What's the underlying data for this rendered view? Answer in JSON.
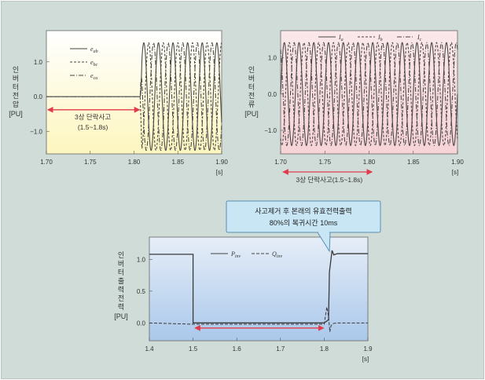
{
  "chart_data": [
    {
      "type": "line",
      "ylabel": "인버터전압",
      "yunit": "[PU]",
      "xunit": "[s]",
      "xlim": [
        1.7,
        1.9
      ],
      "ylim": [
        -1.65,
        1.9
      ],
      "xticks": [
        "1.70",
        "1.75",
        "1.80",
        "1.85",
        "1.90"
      ],
      "yticks": [
        "1.0",
        "0.0",
        "−1.0"
      ],
      "ytick_values": [
        1.0,
        0.0,
        -1.0
      ],
      "legend": [
        "eab",
        "ebc",
        "eca"
      ],
      "legend_subs": [
        [
          "e",
          "ab"
        ],
        [
          "e",
          "bc"
        ],
        [
          "e",
          "ca"
        ]
      ],
      "annotation": [
        "3상 단락사고",
        "(1.5~1.8s)"
      ],
      "fault_end": 1.807,
      "amplitude": 1.55,
      "frequency_hz": 60,
      "background": "#fdf6bf"
    },
    {
      "type": "line",
      "ylabel": "인버터전류",
      "yunit": "[PU]",
      "xunit": "[s]",
      "xlim": [
        1.7,
        1.9
      ],
      "ylim": [
        -1.65,
        1.75
      ],
      "xticks": [
        "1.70",
        "1.75",
        "1.80",
        "1.85",
        "1.90"
      ],
      "yticks": [
        "1.0",
        "0.0",
        "−1.0"
      ],
      "ytick_values": [
        1.0,
        0.0,
        -1.0
      ],
      "legend": [
        "Ia",
        "Ib",
        "Ic"
      ],
      "legend_subs": [
        [
          "I",
          "a"
        ],
        [
          "I",
          "b"
        ],
        [
          "I",
          "c"
        ]
      ],
      "annotation": [
        "3상 단락사고(1.5~1.8s)"
      ],
      "amplitude": 1.42,
      "frequency_hz": 60,
      "background": "#f7d3d6"
    },
    {
      "type": "line",
      "ylabel": "인버터출력전력",
      "yunit": "[PU]",
      "xunit": "[s]",
      "xlim": [
        1.4,
        1.9
      ],
      "ylim": [
        -0.28,
        1.35
      ],
      "xticks": [
        "1.4",
        "1.5",
        "1.6",
        "1.7",
        "1.8",
        "1.9"
      ],
      "yticks": [
        "1.0",
        "0.5",
        "0.0"
      ],
      "ytick_values": [
        1.0,
        0.5,
        0.0
      ],
      "legend": [
        "Pinv",
        "Qinv"
      ],
      "legend_subs": [
        [
          "P",
          "inv"
        ],
        [
          "Q",
          "inv"
        ]
      ],
      "series": [
        {
          "name": "Pinv",
          "x": [
            1.4,
            1.5,
            1.5,
            1.8,
            1.8,
            1.81,
            1.812,
            1.818,
            1.822,
            1.83,
            1.9
          ],
          "y": [
            1.08,
            1.08,
            0.0,
            0.0,
            0.0,
            0.05,
            0.8,
            1.14,
            1.07,
            1.09,
            1.09
          ]
        },
        {
          "name": "Qinv",
          "x": [
            1.4,
            1.5,
            1.8,
            1.806,
            1.81,
            1.813,
            1.816,
            1.82,
            1.83,
            1.9
          ],
          "y": [
            0.0,
            -0.02,
            -0.02,
            0.25,
            0.1,
            -0.14,
            -0.04,
            -0.01,
            0.0,
            0.0
          ]
        }
      ],
      "callout": [
        "사고제거 후 본래의 유효전력출력",
        "80%의 복귀시간 10ms"
      ],
      "background_top": "#e6eef8",
      "background_bottom": "#aac8ea"
    }
  ]
}
